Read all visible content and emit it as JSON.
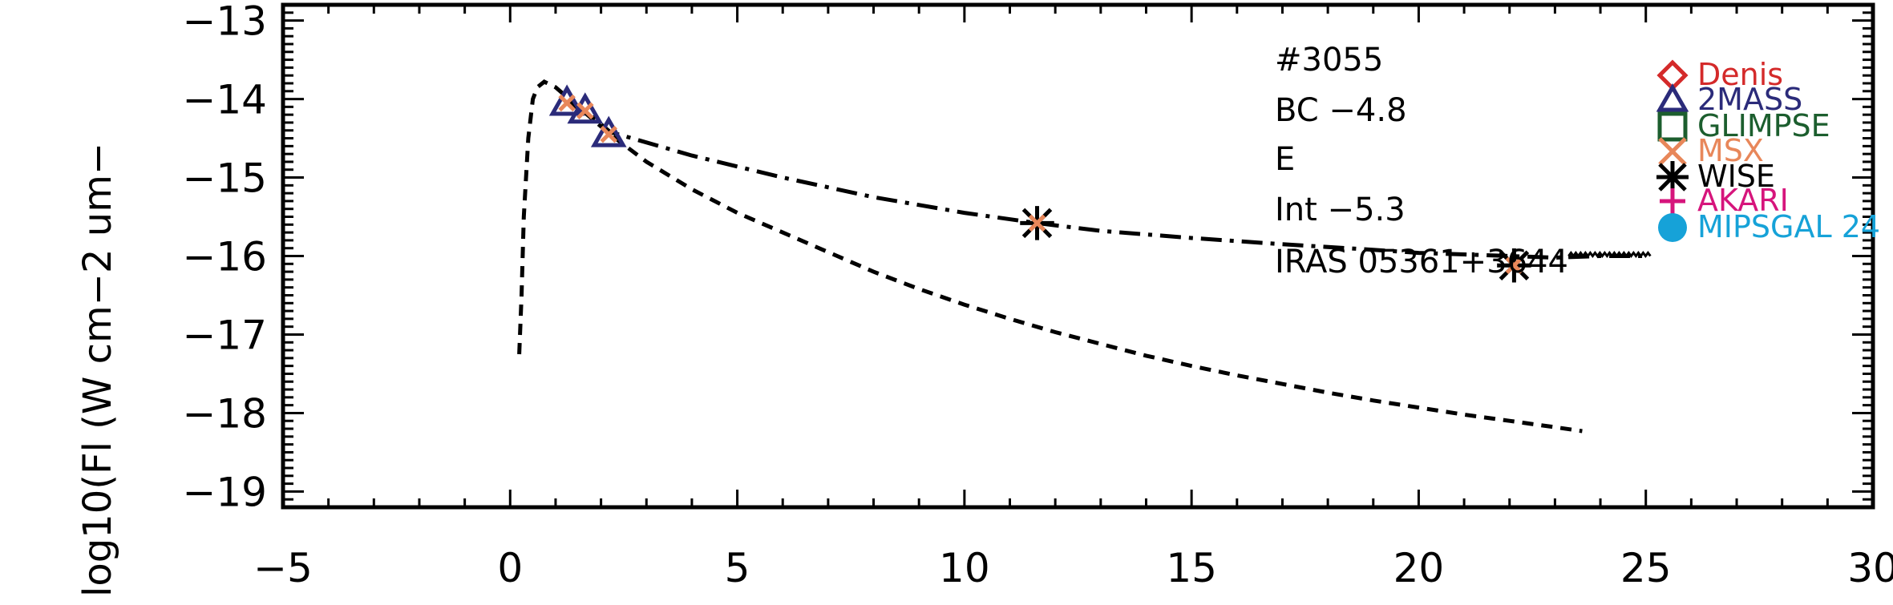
{
  "chart_data": {
    "type": "line",
    "title": "",
    "xlabel": "",
    "ylabel": "log10(Fl (W cm−2 um−",
    "xlim": [
      -5,
      30
    ],
    "ylim": [
      -19.2,
      -12.8
    ],
    "x_ticks": [
      -5,
      0,
      5,
      10,
      15,
      20,
      25,
      30
    ],
    "x_tick_labels": [
      "−5",
      "0",
      "5",
      "10",
      "15",
      "20",
      "25",
      "30"
    ],
    "y_ticks": [
      -13,
      -14,
      -15,
      -16,
      -17,
      -18,
      -19
    ],
    "y_tick_labels": [
      "−13",
      "−14",
      "−15",
      "−16",
      "−17",
      "−18",
      "−19"
    ],
    "annotations": [
      "#3055",
      "BC −4.8",
      "E",
      "Int −5.3",
      "IRAS 05361+3644"
    ],
    "legend": {
      "position": "right",
      "entries": [
        {
          "label": "Denis",
          "marker": "diamond",
          "color": "#d42a2a"
        },
        {
          "label": "2MASS",
          "marker": "triangle",
          "color": "#2b2b7a"
        },
        {
          "label": "GLIMPSE",
          "marker": "square",
          "color": "#1c5e2e"
        },
        {
          "label": "MSX",
          "marker": "x",
          "color": "#e8875a"
        },
        {
          "label": "WISE",
          "marker": "asterisk",
          "color": "#000000"
        },
        {
          "label": "AKARI",
          "marker": "plus",
          "color": "#d6157c"
        },
        {
          "label": "MIPSGAL 24",
          "marker": "circle",
          "color": "#16a2d8"
        }
      ]
    },
    "series": [
      {
        "style": "dashed",
        "color": "#000000",
        "points": [
          [
            0.2,
            -17.25
          ],
          [
            0.25,
            -16.5
          ],
          [
            0.3,
            -15.5
          ],
          [
            0.4,
            -14.5
          ],
          [
            0.5,
            -14.0
          ],
          [
            0.6,
            -13.85
          ],
          [
            0.75,
            -13.78
          ],
          [
            1.0,
            -13.85
          ],
          [
            1.3,
            -14.0
          ],
          [
            1.7,
            -14.2
          ],
          [
            2.2,
            -14.45
          ],
          [
            3.0,
            -14.8
          ],
          [
            4.0,
            -15.15
          ],
          [
            5.0,
            -15.45
          ],
          [
            6.0,
            -15.7
          ],
          [
            7.0,
            -15.95
          ],
          [
            8.0,
            -16.2
          ],
          [
            9.0,
            -16.42
          ],
          [
            10.0,
            -16.62
          ],
          [
            11.0,
            -16.8
          ],
          [
            12.0,
            -16.97
          ],
          [
            13.0,
            -17.12
          ],
          [
            14.0,
            -17.27
          ],
          [
            15.0,
            -17.4
          ],
          [
            16.0,
            -17.52
          ],
          [
            17.0,
            -17.63
          ],
          [
            18.0,
            -17.74
          ],
          [
            19.0,
            -17.84
          ],
          [
            20.0,
            -17.93
          ],
          [
            21.0,
            -18.02
          ],
          [
            22.0,
            -18.1
          ],
          [
            23.0,
            -18.18
          ],
          [
            23.6,
            -18.23
          ]
        ]
      },
      {
        "style": "dash-dot",
        "color": "#000000",
        "points": [
          [
            1.25,
            -14.05
          ],
          [
            1.65,
            -14.15
          ],
          [
            2.2,
            -14.42
          ],
          [
            4.0,
            -14.72
          ],
          [
            6.0,
            -15.0
          ],
          [
            8.0,
            -15.25
          ],
          [
            10.0,
            -15.45
          ],
          [
            11.6,
            -15.58
          ],
          [
            13.0,
            -15.68
          ],
          [
            15.0,
            -15.77
          ],
          [
            17.0,
            -15.85
          ],
          [
            19.0,
            -15.92
          ],
          [
            20.0,
            -15.96
          ],
          [
            21.0,
            -15.98
          ],
          [
            22.0,
            -16.0
          ],
          [
            23.0,
            -16.02
          ],
          [
            24.0,
            -16.0
          ],
          [
            25.0,
            -16.0
          ]
        ]
      }
    ],
    "markers": [
      {
        "survey": "2MASS",
        "shape": "triangle",
        "color": "#2b2b7a",
        "points": [
          [
            1.25,
            -14.05
          ],
          [
            1.65,
            -14.15
          ],
          [
            2.17,
            -14.45
          ]
        ]
      },
      {
        "survey": "MSX",
        "shape": "x",
        "color": "#e8875a",
        "points": [
          [
            1.25,
            -14.05
          ],
          [
            1.65,
            -14.15
          ],
          [
            2.17,
            -14.45
          ]
        ]
      },
      {
        "survey": "WISE",
        "shape": "asterisk",
        "color": "#000000",
        "points": [
          [
            11.6,
            -15.58
          ],
          [
            22.1,
            -16.12
          ]
        ]
      },
      {
        "survey": "MSX",
        "shape": "x",
        "color": "#e8875a",
        "points": [
          [
            11.6,
            -15.58
          ],
          [
            22.1,
            -16.12
          ]
        ]
      }
    ]
  }
}
